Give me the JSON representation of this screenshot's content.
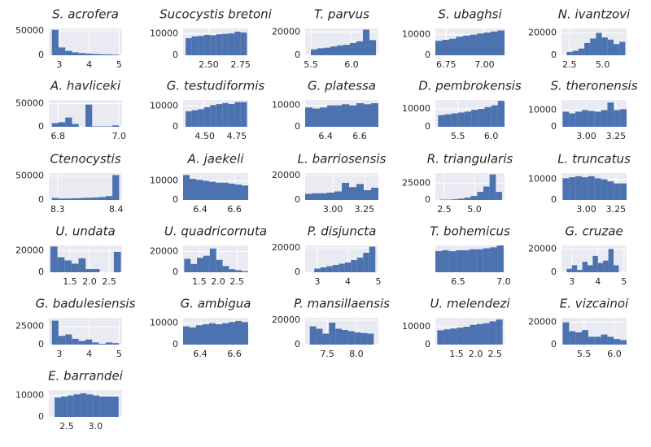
{
  "chart_data": [
    {
      "type": "histogram",
      "title": "S. acrofera",
      "bins": [
        2.75,
        2.975,
        3.2,
        3.425,
        3.65,
        3.875,
        4.1,
        4.325,
        4.55,
        4.775,
        5.0
      ],
      "values": [
        52000,
        16000,
        9000,
        6000,
        4500,
        3500,
        2800,
        2200,
        1800,
        1200
      ],
      "xlim": [
        2.65,
        5.1
      ],
      "ylim": [
        0,
        55000
      ],
      "xticks": [
        3,
        4,
        5
      ],
      "yticks": [
        0,
        50000
      ],
      "color": "#4c72b0",
      "grid": true
    },
    {
      "type": "histogram",
      "title": "Sucocystis bretoni",
      "bins": [
        2.32,
        2.368,
        2.416,
        2.464,
        2.512,
        2.56,
        2.608,
        2.656,
        2.704,
        2.752,
        2.8
      ],
      "values": [
        8000,
        8800,
        9000,
        9500,
        9300,
        9800,
        10000,
        10200,
        11000,
        10600
      ],
      "xlim": [
        2.3,
        2.81
      ],
      "ylim": [
        0,
        12500
      ],
      "xticks": [
        {
          "value": 2.5,
          "label": "2.50"
        },
        2.75
      ],
      "yticks": [
        0,
        10000
      ],
      "color": "#4c72b0",
      "grid": true
    },
    {
      "type": "histogram",
      "title": "T. parvus",
      "bins": [
        5.5,
        5.58,
        5.66,
        5.74,
        5.82,
        5.9,
        5.98,
        6.06,
        6.14,
        6.22,
        6.3
      ],
      "values": [
        5000,
        6000,
        6500,
        7500,
        8500,
        9000,
        10500,
        12000,
        22000,
        13000
      ],
      "xlim": [
        5.43,
        6.33
      ],
      "ylim": [
        0,
        23000
      ],
      "xticks": [
        5.5,
        {
          "value": 6,
          "label": "6.0"
        }
      ],
      "yticks": [
        0,
        20000
      ],
      "color": "#4c72b0",
      "grid": true
    },
    {
      "type": "histogram",
      "title": "S. ubaghsi",
      "bins": [
        6.68,
        6.725,
        6.77,
        6.815,
        6.86,
        6.905,
        6.95,
        6.995,
        7.04,
        7.085,
        7.13
      ],
      "values": [
        7000,
        7500,
        8000,
        9000,
        9500,
        10000,
        10500,
        11000,
        11500,
        12000
      ],
      "xlim": [
        6.68,
        7.13
      ],
      "ylim": [
        0,
        13000
      ],
      "xticks": [
        6.75,
        {
          "value": 7,
          "label": "7.00"
        }
      ],
      "yticks": [
        0,
        10000
      ],
      "color": "#4c72b0",
      "grid": true
    },
    {
      "type": "histogram",
      "title": "N. ivantzovi",
      "bins": [
        2.3,
        2.74,
        3.18,
        3.62,
        4.06,
        4.5,
        4.94,
        5.38,
        5.82,
        6.26,
        6.7
      ],
      "values": [
        3000,
        4000,
        6000,
        11000,
        15000,
        20000,
        16000,
        14000,
        10000,
        12000
      ],
      "xlim": [
        1.9,
        6.8
      ],
      "ylim": [
        0,
        24000
      ],
      "xticks": [
        2.5,
        {
          "value": 5,
          "label": "5.0"
        }
      ],
      "yticks": [
        0,
        20000
      ],
      "color": "#4c72b0",
      "grid": true
    },
    {
      "type": "histogram",
      "title": "A. havliceki",
      "bins": [
        6.78,
        6.802,
        6.824,
        6.846,
        6.868,
        6.89,
        6.912,
        6.934,
        6.956,
        6.978,
        7.0
      ],
      "values": [
        8000,
        10000,
        20000,
        6000,
        0,
        48000,
        1000,
        1000,
        1000,
        3000
      ],
      "xlim": [
        6.77,
        7.01
      ],
      "ylim": [
        0,
        58000
      ],
      "xticks": [
        6.8,
        {
          "value": 7,
          "label": "7.0"
        }
      ],
      "yticks": [
        0,
        50000
      ],
      "color": "#4c72b0",
      "grid": true
    },
    {
      "type": "histogram",
      "title": "G. testudiformis",
      "bins": [
        4.35,
        4.398,
        4.446,
        4.494,
        4.542,
        4.59,
        4.638,
        4.686,
        4.734,
        4.782,
        4.83
      ],
      "values": [
        7500,
        8000,
        8500,
        9500,
        10500,
        11000,
        11500,
        11000,
        12000,
        12000
      ],
      "xlim": [
        4.33,
        4.84
      ],
      "ylim": [
        0,
        13000
      ],
      "xticks": [
        {
          "value": 4.5,
          "label": "4.50"
        },
        4.75
      ],
      "yticks": [
        0,
        10000
      ],
      "color": "#4c72b0",
      "grid": true
    },
    {
      "type": "histogram",
      "title": "G. platessa",
      "bins": [
        6.28,
        6.323,
        6.366,
        6.409,
        6.452,
        6.495,
        6.538,
        6.581,
        6.624,
        6.667,
        6.71
      ],
      "values": [
        9000,
        8500,
        9000,
        10000,
        10000,
        10500,
        10000,
        11000,
        10500,
        11000
      ],
      "xlim": [
        6.28,
        6.71
      ],
      "ylim": [
        0,
        12500
      ],
      "xticks": [
        6.4,
        6.6
      ],
      "yticks": [
        0,
        10000
      ],
      "color": "#4c72b0",
      "grid": true
    },
    {
      "type": "histogram",
      "title": "D. pembrokensis",
      "bins": [
        5.2,
        5.3,
        5.4,
        5.5,
        5.6,
        5.7,
        5.8,
        5.9,
        6.0,
        6.1,
        6.2
      ],
      "values": [
        6500,
        7000,
        7500,
        8000,
        8500,
        9500,
        10000,
        11000,
        12000,
        14500
      ],
      "xlim": [
        5.16,
        6.2
      ],
      "ylim": [
        0,
        15000
      ],
      "xticks": [
        5.5,
        {
          "value": 6,
          "label": "6.0"
        }
      ],
      "yticks": [
        0,
        10000
      ],
      "color": "#4c72b0",
      "grid": true
    },
    {
      "type": "histogram",
      "title": "S. theronensis",
      "bins": [
        2.8,
        2.854,
        2.908,
        2.962,
        3.016,
        3.07,
        3.124,
        3.178,
        3.232,
        3.286,
        3.34
      ],
      "values": [
        9000,
        8000,
        9000,
        10000,
        9500,
        9000,
        10000,
        14500,
        10000,
        10500
      ],
      "xlim": [
        2.79,
        3.34
      ],
      "ylim": [
        0,
        16000
      ],
      "xticks": [
        {
          "value": 3,
          "label": "3.00"
        },
        3.25
      ],
      "yticks": [
        0,
        10000
      ],
      "color": "#4c72b0",
      "grid": true
    },
    {
      "type": "histogram",
      "title": "Ctenocystis",
      "bins": [
        8.29,
        8.3015,
        8.313,
        8.3245,
        8.336,
        8.3475,
        8.359,
        8.3705,
        8.382,
        8.3935,
        8.405
      ],
      "values": [
        4000,
        3000,
        3000,
        3500,
        4000,
        4500,
        5000,
        6000,
        8000,
        52000
      ],
      "xlim": [
        8.285,
        8.41
      ],
      "ylim": [
        0,
        56000
      ],
      "xticks": [
        8.3,
        8.4
      ],
      "yticks": [
        0,
        50000
      ],
      "color": "#4c72b0",
      "grid": true
    },
    {
      "type": "histogram",
      "title": "A. jaekeli",
      "bins": [
        6.3,
        6.338,
        6.376,
        6.414,
        6.452,
        6.49,
        6.528,
        6.566,
        6.604,
        6.642,
        6.68
      ],
      "values": [
        13000,
        11000,
        10500,
        10000,
        9500,
        9000,
        9000,
        8500,
        8000,
        7500
      ],
      "xlim": [
        6.3,
        6.68
      ],
      "ylim": [
        0,
        14000
      ],
      "xticks": [
        6.4,
        6.6
      ],
      "yticks": [
        0,
        10000
      ],
      "color": "#4c72b0",
      "grid": true
    },
    {
      "type": "histogram",
      "title": "L. barriosensis",
      "bins": [
        2.78,
        2.838,
        2.896,
        2.954,
        3.012,
        3.07,
        3.128,
        3.186,
        3.244,
        3.302,
        3.36
      ],
      "values": [
        5000,
        5500,
        5500,
        6000,
        7000,
        14000,
        10500,
        13000,
        8000,
        10000
      ],
      "xlim": [
        2.78,
        3.36
      ],
      "ylim": [
        0,
        22000
      ],
      "xticks": [
        {
          "value": 3,
          "label": "3.00"
        },
        3.25
      ],
      "yticks": [
        0,
        20000
      ],
      "color": "#4c72b0",
      "grid": true
    },
    {
      "type": "histogram",
      "title": "R. triangularis",
      "bins": [
        2.1,
        2.62,
        3.14,
        3.66,
        4.18,
        4.7,
        5.22,
        5.74,
        6.26,
        6.78,
        7.3
      ],
      "values": [
        500,
        500,
        1000,
        2000,
        3500,
        6000,
        12000,
        20000,
        38000,
        12000
      ],
      "xlim": [
        1.76,
        7.5
      ],
      "ylim": [
        0,
        40000
      ],
      "xticks": [
        2.5,
        {
          "value": 5,
          "label": "5.0"
        }
      ],
      "yticks": [
        0,
        25000
      ],
      "color": "#4c72b0",
      "grid": true
    },
    {
      "type": "histogram",
      "title": "L. truncatus",
      "bins": [
        2.8,
        2.854,
        2.908,
        2.962,
        3.016,
        3.07,
        3.124,
        3.178,
        3.232,
        3.286,
        3.34
      ],
      "values": [
        10500,
        11000,
        11500,
        11000,
        11500,
        10500,
        10000,
        9000,
        8000,
        8000
      ],
      "xlim": [
        2.79,
        3.34
      ],
      "ylim": [
        0,
        13000
      ],
      "xticks": [
        {
          "value": 3,
          "label": "3.00"
        },
        3.25
      ],
      "yticks": [
        0,
        10000
      ],
      "color": "#4c72b0",
      "grid": true
    },
    {
      "type": "histogram",
      "title": "U. undata",
      "bins": [
        1.0,
        1.18,
        1.36,
        1.54,
        1.72,
        1.9,
        2.08,
        2.26,
        2.44,
        2.62,
        2.8
      ],
      "values": [
        24000,
        14000,
        11000,
        8000,
        13000,
        3000,
        3000,
        0,
        0,
        19000
      ],
      "xlim": [
        0.96,
        2.83
      ],
      "ylim": [
        0,
        25000
      ],
      "xticks": [
        1.5,
        {
          "value": 2,
          "label": "2.0"
        },
        2.5
      ],
      "yticks": [
        0,
        20000
      ],
      "color": "#4c72b0",
      "grid": true
    },
    {
      "type": "histogram",
      "title": "U. quadricornuta",
      "bins": [
        1.1,
        1.27,
        1.44,
        1.61,
        1.78,
        1.95,
        2.12,
        2.29,
        2.46,
        2.63,
        2.8
      ],
      "values": [
        13000,
        8000,
        14000,
        16000,
        23000,
        12000,
        6000,
        3000,
        2000,
        1000
      ],
      "xlim": [
        1.07,
        2.8
      ],
      "ylim": [
        0,
        26000
      ],
      "xticks": [
        1.5,
        {
          "value": 2,
          "label": "2.0"
        },
        2.5
      ],
      "yticks": [
        0,
        20000
      ],
      "color": "#4c72b0",
      "grid": true
    },
    {
      "type": "histogram",
      "title": "P. disjuncta",
      "bins": [
        2.9,
        3.1,
        3.3,
        3.5,
        3.7,
        3.9,
        4.1,
        4.3,
        4.5,
        4.7,
        4.9
      ],
      "values": [
        3000,
        4000,
        5000,
        6000,
        7000,
        8000,
        10000,
        12000,
        16000,
        21000
      ],
      "xlim": [
        2.6,
        5.0
      ],
      "ylim": [
        0,
        22000
      ],
      "xticks": [
        3,
        4,
        5
      ],
      "yticks": [
        0,
        20000
      ],
      "color": "#4c72b0",
      "grid": true
    },
    {
      "type": "histogram",
      "title": "T. bohemicus",
      "bins": [
        6.25,
        6.325,
        6.4,
        6.475,
        6.55,
        6.625,
        6.7,
        6.775,
        6.85,
        6.925,
        7.0
      ],
      "values": [
        11000,
        11500,
        11000,
        11500,
        11500,
        12000,
        12000,
        12500,
        13000,
        14000
      ],
      "xlim": [
        6.25,
        7.01
      ],
      "ylim": [
        0,
        14000
      ],
      "xticks": [
        6.5,
        {
          "value": 7,
          "label": "7.0"
        }
      ],
      "yticks": [],
      "color": "#4c72b0",
      "grid": true
    },
    {
      "type": "histogram",
      "title": "G. cruzae",
      "bins": [
        2.8,
        3.0,
        3.2,
        3.4,
        3.6,
        3.8,
        4.0,
        4.2,
        4.4,
        4.6,
        4.8
      ],
      "values": [
        3000,
        6000,
        2000,
        9000,
        6000,
        14000,
        8000,
        10000,
        20000,
        6000
      ],
      "xlim": [
        2.6,
        5.1
      ],
      "ylim": [
        0,
        23000
      ],
      "xticks": [
        3,
        4,
        5
      ],
      "yticks": [
        0,
        20000
      ],
      "color": "#4c72b0",
      "grid": true
    },
    {
      "type": "histogram",
      "title": "G. badulesiensis",
      "bins": [
        2.75,
        2.975,
        3.2,
        3.425,
        3.65,
        3.875,
        4.1,
        4.325,
        4.55,
        4.775,
        5.0
      ],
      "values": [
        33000,
        12000,
        14000,
        8000,
        5000,
        7000,
        3000,
        1000,
        3000,
        2000
      ],
      "xlim": [
        2.65,
        5.1
      ],
      "ylim": [
        0,
        37000
      ],
      "xticks": [
        3,
        4,
        5
      ],
      "yticks": [
        0,
        25000
      ],
      "color": "#4c72b0",
      "grid": true
    },
    {
      "type": "histogram",
      "title": "G. ambigua",
      "bins": [
        6.3,
        6.338,
        6.376,
        6.414,
        6.452,
        6.49,
        6.528,
        6.566,
        6.604,
        6.642,
        6.68
      ],
      "values": [
        8500,
        8000,
        9000,
        9500,
        10000,
        9500,
        10000,
        10500,
        11000,
        10500
      ],
      "xlim": [
        6.3,
        6.68
      ],
      "ylim": [
        0,
        12500
      ],
      "xticks": [
        6.4,
        6.6
      ],
      "yticks": [
        0,
        10000
      ],
      "color": "#4c72b0",
      "grid": true
    },
    {
      "type": "histogram",
      "title": "P. mansillaensis",
      "bins": [
        7.2,
        7.31,
        7.42,
        7.53,
        7.64,
        7.75,
        7.86,
        7.97,
        8.08,
        8.19,
        8.3
      ],
      "values": [
        15000,
        13000,
        9000,
        18000,
        13000,
        12000,
        11000,
        10000,
        9500,
        9000
      ],
      "xlim": [
        7.12,
        8.38
      ],
      "ylim": [
        0,
        22000
      ],
      "xticks": [
        7.5,
        {
          "value": 8,
          "label": "8.0"
        }
      ],
      "yticks": [
        0,
        20000
      ],
      "color": "#4c72b0",
      "grid": true
    },
    {
      "type": "histogram",
      "title": "U. melendezi",
      "bins": [
        1.0,
        1.17,
        1.34,
        1.51,
        1.68,
        1.85,
        2.02,
        2.19,
        2.36,
        2.53,
        2.7
      ],
      "values": [
        8000,
        8500,
        9000,
        9500,
        10000,
        11000,
        11500,
        12000,
        13000,
        14000
      ],
      "xlim": [
        0.95,
        2.75
      ],
      "ylim": [
        0,
        15000
      ],
      "xticks": [
        1.5,
        {
          "value": 2,
          "label": "2.0"
        },
        2.5
      ],
      "yticks": [
        0,
        10000
      ],
      "color": "#4c72b0",
      "grid": true
    },
    {
      "type": "histogram",
      "title": "E. vizcainoi",
      "bins": [
        5.15,
        5.255,
        5.36,
        5.465,
        5.57,
        5.675,
        5.78,
        5.885,
        5.99,
        6.095,
        6.2
      ],
      "values": [
        20000,
        12000,
        11000,
        13000,
        7000,
        7000,
        9000,
        7000,
        5000,
        4000
      ],
      "xlim": [
        5.13,
        6.2
      ],
      "ylim": [
        0,
        24000
      ],
      "xticks": [
        5.5,
        {
          "value": 6,
          "label": "6.0"
        }
      ],
      "yticks": [
        0,
        20000
      ],
      "color": "#4c72b0",
      "grid": true
    },
    {
      "type": "histogram",
      "title": "E. barrandei",
      "bins": [
        2.29,
        2.401,
        2.512,
        2.623,
        2.734,
        2.845,
        2.956,
        3.067,
        3.178,
        3.289,
        3.4
      ],
      "values": [
        9000,
        9500,
        10000,
        10500,
        11000,
        10500,
        10000,
        9500,
        9500,
        9500
      ],
      "xlim": [
        2.19,
        3.46
      ],
      "ylim": [
        0,
        12500
      ],
      "xticks": [
        2.5,
        {
          "value": 3,
          "label": "3.0"
        }
      ],
      "yticks": [
        0,
        10000
      ],
      "color": "#4c72b0",
      "grid": true
    }
  ]
}
